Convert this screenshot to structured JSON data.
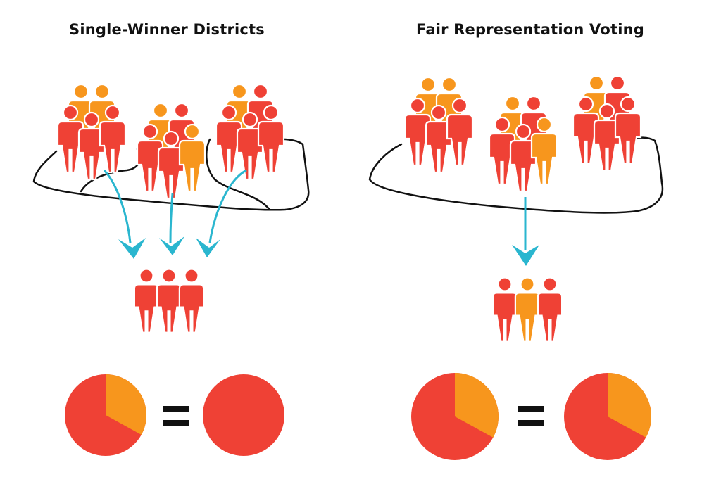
{
  "colors": {
    "majority_red": "#ef4135",
    "minority_orange": "#f7961d",
    "arrow_teal": "#2ab6cf",
    "outline": "#111111",
    "equals": "#111111"
  },
  "left_panel": {
    "title": "Single-Winner Districts",
    "electorate": {
      "groups": [
        {
          "people": [
            "orange",
            "orange",
            "red",
            "red",
            "red"
          ]
        },
        {
          "people": [
            "orange",
            "red",
            "red",
            "red",
            "orange"
          ]
        },
        {
          "people": [
            "orange",
            "red",
            "red",
            "red",
            "red"
          ]
        }
      ],
      "district_count": 3
    },
    "winners": [
      "red",
      "red",
      "red"
    ],
    "vote_share": {
      "red": 0.67,
      "orange": 0.33
    },
    "seat_share": {
      "red": 1.0,
      "orange": 0.0
    },
    "equals_sign": "="
  },
  "right_panel": {
    "title": "Fair Representation Voting",
    "electorate": {
      "groups": [
        {
          "people": [
            "orange",
            "orange",
            "red",
            "red",
            "red"
          ]
        },
        {
          "people": [
            "orange",
            "red",
            "red",
            "red",
            "orange"
          ]
        },
        {
          "people": [
            "orange",
            "red",
            "red",
            "red",
            "red"
          ]
        }
      ],
      "district_count": 1
    },
    "winners": [
      "red",
      "orange",
      "red"
    ],
    "vote_share": {
      "red": 0.67,
      "orange": 0.33
    },
    "seat_share": {
      "red": 0.67,
      "orange": 0.33
    },
    "equals_sign": "="
  }
}
